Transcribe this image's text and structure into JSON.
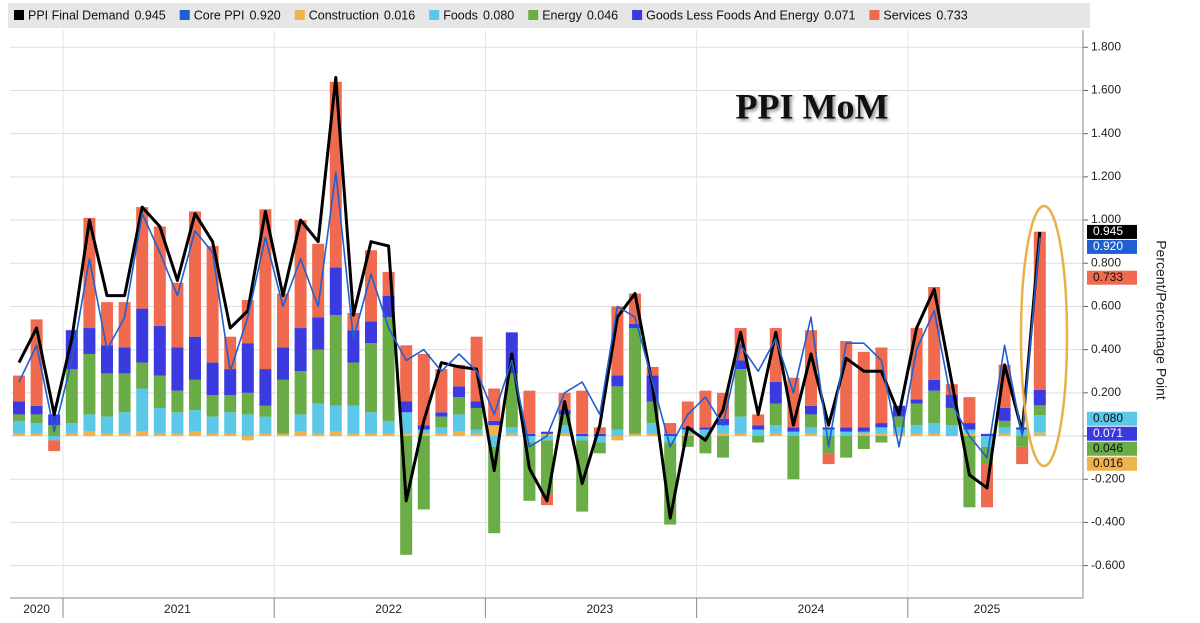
{
  "chart_data": {
    "type": "bar",
    "title": "PPI MoM",
    "y_axis_label": "Percent/Percentage Point",
    "categories": [
      null,
      "2020",
      null,
      null,
      null,
      null,
      null,
      null,
      null,
      "2021",
      null,
      null,
      null,
      null,
      null,
      null,
      null,
      null,
      null,
      null,
      null,
      "2022",
      null,
      null,
      null,
      null,
      null,
      null,
      null,
      null,
      null,
      null,
      null,
      "2023",
      null,
      null,
      null,
      null,
      null,
      null,
      null,
      null,
      null,
      null,
      null,
      "2024",
      null,
      null,
      null,
      null,
      null,
      null,
      null,
      null,
      null,
      "2025",
      null,
      null,
      null
    ],
    "ylim": [
      -0.75,
      1.88
    ],
    "yticks": [
      {
        "value": -0.6,
        "label": "-0.600"
      },
      {
        "value": -0.4,
        "label": "-0.400"
      },
      {
        "value": -0.2,
        "label": "-0.200"
      },
      {
        "value": 0,
        "label": "0.000"
      },
      {
        "value": 0.2,
        "label": "0.200"
      },
      {
        "value": 0.4,
        "label": "0.400"
      },
      {
        "value": 0.6,
        "label": "0.600"
      },
      {
        "value": 0.8,
        "label": "0.800"
      },
      {
        "value": 1.0,
        "label": "1.000"
      },
      {
        "value": 1.2,
        "label": "1.200"
      },
      {
        "value": 1.4,
        "label": "1.400"
      },
      {
        "value": 1.6,
        "label": "1.600"
      },
      {
        "value": 1.8,
        "label": "1.800"
      }
    ],
    "grid": true,
    "series": [
      {
        "name": "PPI Final Demand",
        "type": "line",
        "color": "#000000",
        "values": [
          0.34,
          0.5,
          0.1,
          0.45,
          1.0,
          0.65,
          0.65,
          1.06,
          0.97,
          0.72,
          1.03,
          0.9,
          0.5,
          0.58,
          1.04,
          0.65,
          1.0,
          0.9,
          1.66,
          0.56,
          0.9,
          0.88,
          -0.3,
          0.07,
          0.34,
          0.32,
          0.31,
          -0.16,
          0.38,
          -0.15,
          -0.3,
          0.16,
          -0.22,
          0.05,
          0.55,
          0.66,
          0.23,
          -0.38,
          0.04,
          -0.02,
          0.12,
          0.48,
          0.1,
          0.48,
          0.05,
          0.38,
          0.05,
          0.36,
          0.3,
          0.3,
          0.1,
          0.5,
          0.68,
          0.25,
          -0.18,
          -0.24,
          0.33,
          0.02,
          0.945
        ],
        "value_labels": [
          null,
          null,
          null,
          null,
          null,
          null,
          null,
          null,
          null,
          null,
          null,
          null,
          null,
          null,
          null,
          null,
          null,
          null,
          null,
          null,
          null,
          null,
          null,
          null,
          null,
          null,
          null,
          null,
          null,
          null,
          null,
          null,
          null,
          null,
          null,
          null,
          null,
          null,
          null,
          null,
          null,
          null,
          null,
          null,
          null,
          null,
          null,
          null,
          null,
          null,
          null,
          null,
          null,
          null,
          null,
          null,
          null,
          null,
          "0.945"
        ]
      },
      {
        "name": "Core PPI",
        "type": "line",
        "color": "#1f5fd0",
        "values": [
          0.25,
          0.42,
          0.02,
          0.35,
          0.82,
          0.4,
          0.55,
          1.03,
          0.85,
          0.65,
          0.95,
          0.85,
          0.3,
          0.55,
          0.92,
          0.6,
          0.82,
          0.6,
          1.22,
          0.45,
          0.75,
          0.5,
          0.35,
          0.4,
          0.3,
          0.38,
          0.3,
          0.1,
          0.35,
          -0.05,
          0.0,
          0.2,
          0.25,
          0.1,
          0.6,
          0.55,
          0.25,
          -0.05,
          0.1,
          0.18,
          0.05,
          0.42,
          0.3,
          0.45,
          0.2,
          0.55,
          -0.05,
          0.43,
          0.43,
          0.35,
          -0.05,
          0.4,
          0.58,
          0.15,
          0.0,
          -0.1,
          0.42,
          0.0,
          0.92
        ],
        "value_labels": [
          null,
          null,
          null,
          null,
          null,
          null,
          null,
          null,
          null,
          null,
          null,
          null,
          null,
          null,
          null,
          null,
          null,
          null,
          null,
          null,
          null,
          null,
          null,
          null,
          null,
          null,
          null,
          null,
          null,
          null,
          null,
          null,
          null,
          null,
          null,
          null,
          null,
          null,
          null,
          null,
          null,
          null,
          null,
          null,
          null,
          null,
          null,
          null,
          null,
          null,
          null,
          null,
          null,
          null,
          null,
          null,
          null,
          null,
          "0.920"
        ]
      },
      {
        "name": "Construction",
        "type": "bar",
        "color": "#f0b24a",
        "values": [
          0.01,
          0.01,
          0.0,
          0.01,
          0.02,
          0.01,
          0.01,
          0.02,
          0.01,
          0.01,
          0.02,
          0.01,
          0.01,
          -0.02,
          0.01,
          0.01,
          0.02,
          0.01,
          0.02,
          0.01,
          0.01,
          0.01,
          0.01,
          0.01,
          0.01,
          0.02,
          0.01,
          0.05,
          0.01,
          0.0,
          0.01,
          0.01,
          0.0,
          0.0,
          -0.02,
          0.01,
          0.01,
          0.0,
          0.01,
          0.0,
          0.01,
          0.01,
          0.0,
          0.01,
          0.0,
          0.01,
          0.0,
          0.0,
          0.01,
          0.01,
          0.01,
          0.01,
          0.01,
          0.0,
          0.01,
          0.0,
          0.01,
          0.0,
          0.016
        ],
        "value_labels": [
          null,
          null,
          null,
          null,
          null,
          null,
          null,
          null,
          null,
          null,
          null,
          null,
          null,
          null,
          null,
          null,
          null,
          null,
          null,
          null,
          null,
          null,
          null,
          null,
          null,
          null,
          null,
          null,
          null,
          null,
          null,
          null,
          null,
          null,
          null,
          null,
          null,
          null,
          null,
          null,
          null,
          null,
          null,
          null,
          null,
          null,
          null,
          null,
          null,
          null,
          null,
          null,
          null,
          null,
          null,
          null,
          null,
          null,
          "0.016"
        ]
      },
      {
        "name": "Foods",
        "type": "bar",
        "color": "#5bc8e8",
        "values": [
          0.06,
          0.05,
          -0.02,
          0.05,
          0.08,
          0.08,
          0.1,
          0.2,
          0.12,
          0.1,
          0.1,
          0.08,
          0.1,
          0.1,
          0.08,
          0.0,
          0.08,
          0.14,
          0.12,
          0.13,
          0.1,
          0.06,
          0.1,
          0.02,
          0.03,
          0.08,
          0.02,
          -0.05,
          0.03,
          -0.03,
          -0.02,
          0.04,
          -0.02,
          -0.03,
          0.03,
          0.0,
          0.05,
          -0.03,
          0.02,
          0.03,
          0.04,
          0.08,
          0.03,
          0.04,
          0.02,
          0.03,
          0.03,
          0.02,
          0.01,
          0.03,
          0.03,
          0.04,
          0.05,
          0.05,
          0.02,
          -0.05,
          0.03,
          0.03,
          0.08
        ],
        "value_labels": [
          null,
          null,
          null,
          null,
          null,
          null,
          null,
          null,
          null,
          null,
          null,
          null,
          null,
          null,
          null,
          null,
          null,
          null,
          null,
          null,
          null,
          null,
          null,
          null,
          null,
          null,
          null,
          null,
          null,
          null,
          null,
          null,
          null,
          null,
          null,
          null,
          null,
          null,
          null,
          null,
          null,
          null,
          null,
          null,
          null,
          null,
          null,
          null,
          null,
          null,
          null,
          null,
          null,
          null,
          null,
          null,
          null,
          null,
          "0.080"
        ]
      },
      {
        "name": "Energy",
        "type": "bar",
        "color": "#6aac45",
        "values": [
          0.03,
          0.04,
          0.05,
          0.25,
          0.28,
          0.2,
          0.18,
          0.12,
          0.15,
          0.1,
          0.14,
          0.1,
          0.08,
          0.1,
          0.05,
          0.25,
          0.2,
          0.25,
          0.42,
          0.2,
          0.32,
          0.48,
          -0.55,
          -0.34,
          0.05,
          0.08,
          0.1,
          -0.4,
          0.25,
          -0.27,
          -0.25,
          0.05,
          -0.33,
          -0.05,
          0.2,
          0.49,
          0.1,
          -0.38,
          -0.05,
          -0.08,
          -0.1,
          0.22,
          -0.03,
          0.1,
          -0.2,
          0.06,
          -0.08,
          -0.1,
          -0.06,
          -0.03,
          0.05,
          0.1,
          0.15,
          0.08,
          -0.33,
          -0.08,
          0.03,
          -0.05,
          0.046
        ],
        "value_labels": [
          null,
          null,
          null,
          null,
          null,
          null,
          null,
          null,
          null,
          null,
          null,
          null,
          null,
          null,
          null,
          null,
          null,
          null,
          null,
          null,
          null,
          null,
          null,
          null,
          null,
          null,
          null,
          null,
          null,
          null,
          null,
          null,
          null,
          null,
          null,
          null,
          null,
          null,
          null,
          null,
          null,
          null,
          null,
          null,
          null,
          null,
          null,
          null,
          null,
          null,
          null,
          null,
          null,
          null,
          null,
          null,
          null,
          null,
          "0.046"
        ]
      },
      {
        "name": "Goods Less Foods And Energy",
        "type": "bar",
        "color": "#3a3ae0",
        "values": [
          0.06,
          0.04,
          0.05,
          0.18,
          0.12,
          0.13,
          0.12,
          0.25,
          0.23,
          0.2,
          0.2,
          0.15,
          0.12,
          0.23,
          0.17,
          0.15,
          0.2,
          0.15,
          0.22,
          0.15,
          0.1,
          0.1,
          0.05,
          0.02,
          0.02,
          0.05,
          0.03,
          0.02,
          0.19,
          0.01,
          0.01,
          0.02,
          0.01,
          0.01,
          0.05,
          0.02,
          0.12,
          0.01,
          0.01,
          0.01,
          0.03,
          0.04,
          0.02,
          0.1,
          0.02,
          0.04,
          0.01,
          0.02,
          0.02,
          0.02,
          0.05,
          0.02,
          0.05,
          0.06,
          0.03,
          0.01,
          0.06,
          0.01,
          0.071
        ],
        "value_labels": [
          null,
          null,
          null,
          null,
          null,
          null,
          null,
          null,
          null,
          null,
          null,
          null,
          null,
          null,
          null,
          null,
          null,
          null,
          null,
          null,
          null,
          null,
          null,
          null,
          null,
          null,
          null,
          null,
          null,
          null,
          null,
          null,
          null,
          null,
          null,
          null,
          null,
          null,
          null,
          null,
          null,
          null,
          null,
          null,
          null,
          null,
          null,
          null,
          null,
          null,
          null,
          null,
          null,
          null,
          null,
          null,
          null,
          null,
          "0.071"
        ]
      },
      {
        "name": "Services",
        "type": "bar",
        "color": "#f06a50",
        "values": [
          0.12,
          0.4,
          -0.05,
          0.0,
          0.51,
          0.2,
          0.21,
          0.47,
          0.46,
          0.3,
          0.58,
          0.54,
          0.15,
          0.2,
          0.74,
          0.25,
          0.5,
          0.34,
          0.86,
          0.08,
          0.33,
          0.11,
          0.26,
          0.33,
          0.2,
          0.1,
          0.3,
          0.15,
          0.0,
          0.2,
          -0.05,
          0.08,
          0.2,
          0.03,
          0.32,
          0.14,
          0.04,
          0.05,
          0.12,
          0.17,
          0.12,
          0.15,
          0.05,
          0.25,
          0.23,
          0.35,
          -0.05,
          0.4,
          0.35,
          0.35,
          0.0,
          0.33,
          0.43,
          0.05,
          0.12,
          -0.2,
          0.2,
          -0.08,
          0.733
        ],
        "value_labels": [
          null,
          null,
          null,
          null,
          null,
          null,
          null,
          null,
          null,
          null,
          null,
          null,
          null,
          null,
          null,
          null,
          null,
          null,
          null,
          null,
          null,
          null,
          null,
          null,
          null,
          null,
          null,
          null,
          null,
          null,
          null,
          null,
          null,
          null,
          null,
          null,
          null,
          null,
          null,
          null,
          null,
          null,
          null,
          null,
          null,
          null,
          null,
          null,
          null,
          null,
          null,
          null,
          null,
          null,
          null,
          null,
          null,
          null,
          "0.733"
        ]
      }
    ]
  }
}
